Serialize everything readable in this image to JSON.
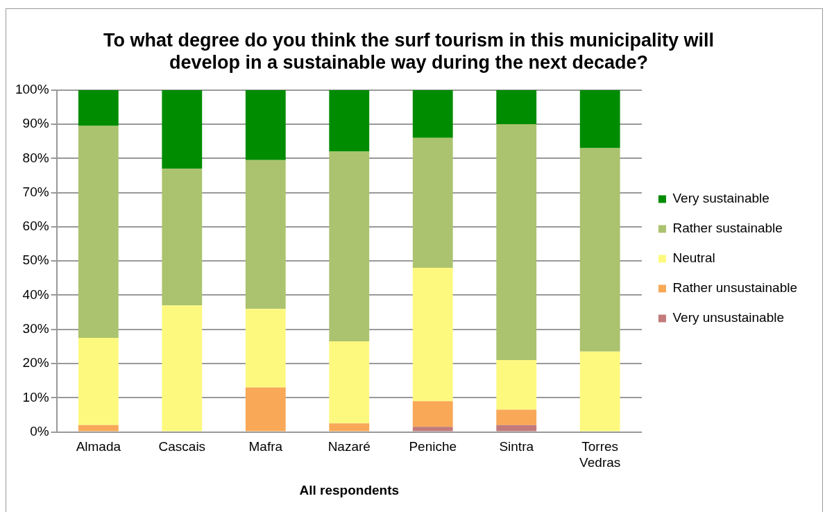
{
  "chart_data": {
    "type": "bar",
    "stacked": true,
    "title": "To what degree do you think the surf tourism in this municipality will develop in a sustainable way during the next decade?",
    "xlabel": "All respondents",
    "categories": [
      "Almada",
      "Cascais",
      "Mafra",
      "Nazaré",
      "Peniche",
      "Sintra",
      "Torres Vedras"
    ],
    "series": [
      {
        "name": "Very unsustainable",
        "color": "#c27a7a",
        "values": [
          0,
          0,
          0,
          0,
          1.5,
          2,
          0
        ]
      },
      {
        "name": "Rather unsustainable",
        "color": "#f8a857",
        "values": [
          2,
          0,
          13,
          2.5,
          7.5,
          4.5,
          0
        ]
      },
      {
        "name": "Neutral",
        "color": "#fdf97f",
        "values": [
          25.5,
          37,
          23,
          24,
          39,
          14.5,
          23.5
        ]
      },
      {
        "name": "Rather sustainable",
        "color": "#abc36e",
        "values": [
          62,
          40,
          43.5,
          55.5,
          38,
          69,
          59.5
        ]
      },
      {
        "name": "Very sustainable",
        "color": "#008c00",
        "values": [
          10.5,
          23,
          20.5,
          18,
          14,
          10,
          17
        ]
      }
    ],
    "ylim": [
      0,
      100
    ],
    "yticks": [
      {
        "value": 0,
        "label": "0%"
      },
      {
        "value": 10,
        "label": "10%"
      },
      {
        "value": 20,
        "label": "20%"
      },
      {
        "value": 30,
        "label": "30%"
      },
      {
        "value": 40,
        "label": "40%"
      },
      {
        "value": 50,
        "label": "50%"
      },
      {
        "value": 60,
        "label": "60%"
      },
      {
        "value": 70,
        "label": "70%"
      },
      {
        "value": 80,
        "label": "80%"
      },
      {
        "value": 90,
        "label": "90%"
      },
      {
        "value": 100,
        "label": "100%"
      }
    ],
    "grid": "y",
    "legend": "right"
  }
}
